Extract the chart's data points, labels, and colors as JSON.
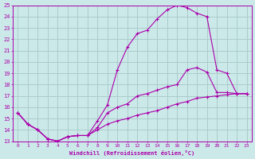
{
  "xlabel": "Windchill (Refroidissement éolien,°C)",
  "xlim": [
    -0.5,
    23.5
  ],
  "ylim": [
    13,
    25
  ],
  "yticks": [
    13,
    14,
    15,
    16,
    17,
    18,
    19,
    20,
    21,
    22,
    23,
    24,
    25
  ],
  "xticks": [
    0,
    1,
    2,
    3,
    4,
    5,
    6,
    7,
    8,
    9,
    10,
    11,
    12,
    13,
    14,
    15,
    16,
    17,
    18,
    19,
    20,
    21,
    22,
    23
  ],
  "background_color": "#cce9e9",
  "grid_color": "#aacccc",
  "line_color": "#aa00aa",
  "line1_x": [
    0,
    1,
    2,
    3,
    4,
    5,
    6,
    7,
    8,
    9,
    10,
    11,
    12,
    13,
    14,
    15,
    16,
    17,
    18,
    19,
    20,
    21,
    22,
    23
  ],
  "line1_y": [
    15.5,
    14.5,
    14.0,
    13.2,
    13.0,
    13.4,
    13.5,
    13.5,
    14.8,
    16.2,
    19.3,
    21.3,
    22.5,
    22.8,
    23.8,
    24.6,
    25.0,
    24.8,
    24.3,
    24.0,
    19.3,
    19.0,
    17.2,
    17.2
  ],
  "line2_x": [
    0,
    1,
    2,
    3,
    4,
    5,
    6,
    7,
    8,
    9,
    10,
    11,
    12,
    13,
    14,
    15,
    16,
    17,
    18,
    19,
    20,
    21,
    22,
    23
  ],
  "line2_y": [
    15.5,
    14.5,
    14.0,
    13.2,
    13.0,
    13.4,
    13.5,
    13.5,
    14.2,
    15.5,
    16.0,
    16.3,
    17.0,
    17.2,
    17.5,
    17.8,
    18.0,
    19.3,
    19.5,
    19.1,
    17.3,
    17.3,
    17.2,
    17.2
  ],
  "line3_x": [
    0,
    1,
    2,
    3,
    4,
    5,
    6,
    7,
    8,
    9,
    10,
    11,
    12,
    13,
    14,
    15,
    16,
    17,
    18,
    19,
    20,
    21,
    22,
    23
  ],
  "line3_y": [
    15.5,
    14.5,
    14.0,
    13.2,
    13.0,
    13.4,
    13.5,
    13.5,
    14.0,
    14.5,
    14.8,
    15.0,
    15.3,
    15.5,
    15.7,
    16.0,
    16.3,
    16.5,
    16.8,
    16.9,
    17.0,
    17.1,
    17.2,
    17.2
  ]
}
